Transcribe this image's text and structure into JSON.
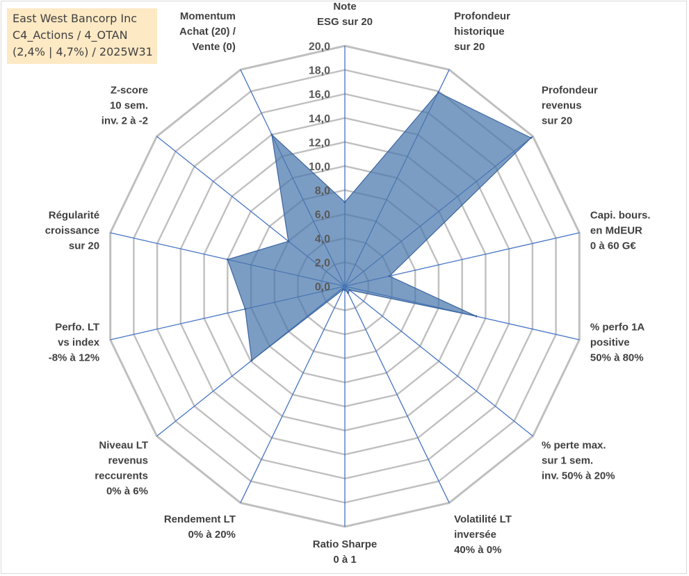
{
  "info": {
    "line1": "East West Bancorp Inc",
    "line2": "C4_Actions / 4_OTAN",
    "line3": "(2,4% | 4,7%) / 2025W31"
  },
  "chart_data": {
    "type": "radar",
    "title": "",
    "rmax": 20,
    "tick_step": 2,
    "ticks": [
      "0,0",
      "2,0",
      "4,0",
      "6,0",
      "8,0",
      "10,0",
      "12,0",
      "14,0",
      "16,0",
      "18,0",
      "20,0"
    ],
    "grid": true,
    "colors": {
      "fill": "#4a77ac",
      "fill_opacity": 0.72,
      "axis": "#4472c4",
      "grid": "#bfbfbf"
    },
    "axes": [
      {
        "label": [
          "Note",
          "ESG sur 20"
        ],
        "value": 7
      },
      {
        "label": [
          "Profondeur",
          "historique",
          "sur 20"
        ],
        "value": 17.9
      },
      {
        "label": [
          "Profondeur",
          "revenus",
          "sur 20"
        ],
        "value": 19.8
      },
      {
        "label": [
          "Capi. bours.",
          "en MdEUR",
          "0 à 60 G€"
        ],
        "value": 3.8
      },
      {
        "label": [
          "% perfo 1A",
          "positive",
          "50% à 80%"
        ],
        "value": 11.2
      },
      {
        "label": [
          "% perte max.",
          "sur 1 sem.",
          "inv. 50% à 20%"
        ],
        "value": 0.5
      },
      {
        "label": [
          "Volatilité LT",
          "inversée",
          "40% à 0%"
        ],
        "value": 0.6
      },
      {
        "label": [
          "Ratio Sharpe",
          "0 à 1"
        ],
        "value": 0.3
      },
      {
        "label": [
          "Rendement LT",
          "0% à 20%"
        ],
        "value": 0.3
      },
      {
        "label": [
          "Niveau LT",
          "revenus",
          "reccurents",
          "0% à 6%"
        ],
        "value": 9.9
      },
      {
        "label": [
          "Perfo. LT",
          "vs index",
          "-8% à 12%"
        ],
        "value": 8.5
      },
      {
        "label": [
          "Régularité",
          "croissance",
          "sur 20"
        ],
        "value": 10.0
      },
      {
        "label": [
          "Z-score",
          "10 sem.",
          "inv. 2 à -2"
        ],
        "value": 6.0
      },
      {
        "label": [
          "Momentum",
          "Achat (20) /",
          "Vente (0)"
        ],
        "value": 14.0
      }
    ]
  }
}
